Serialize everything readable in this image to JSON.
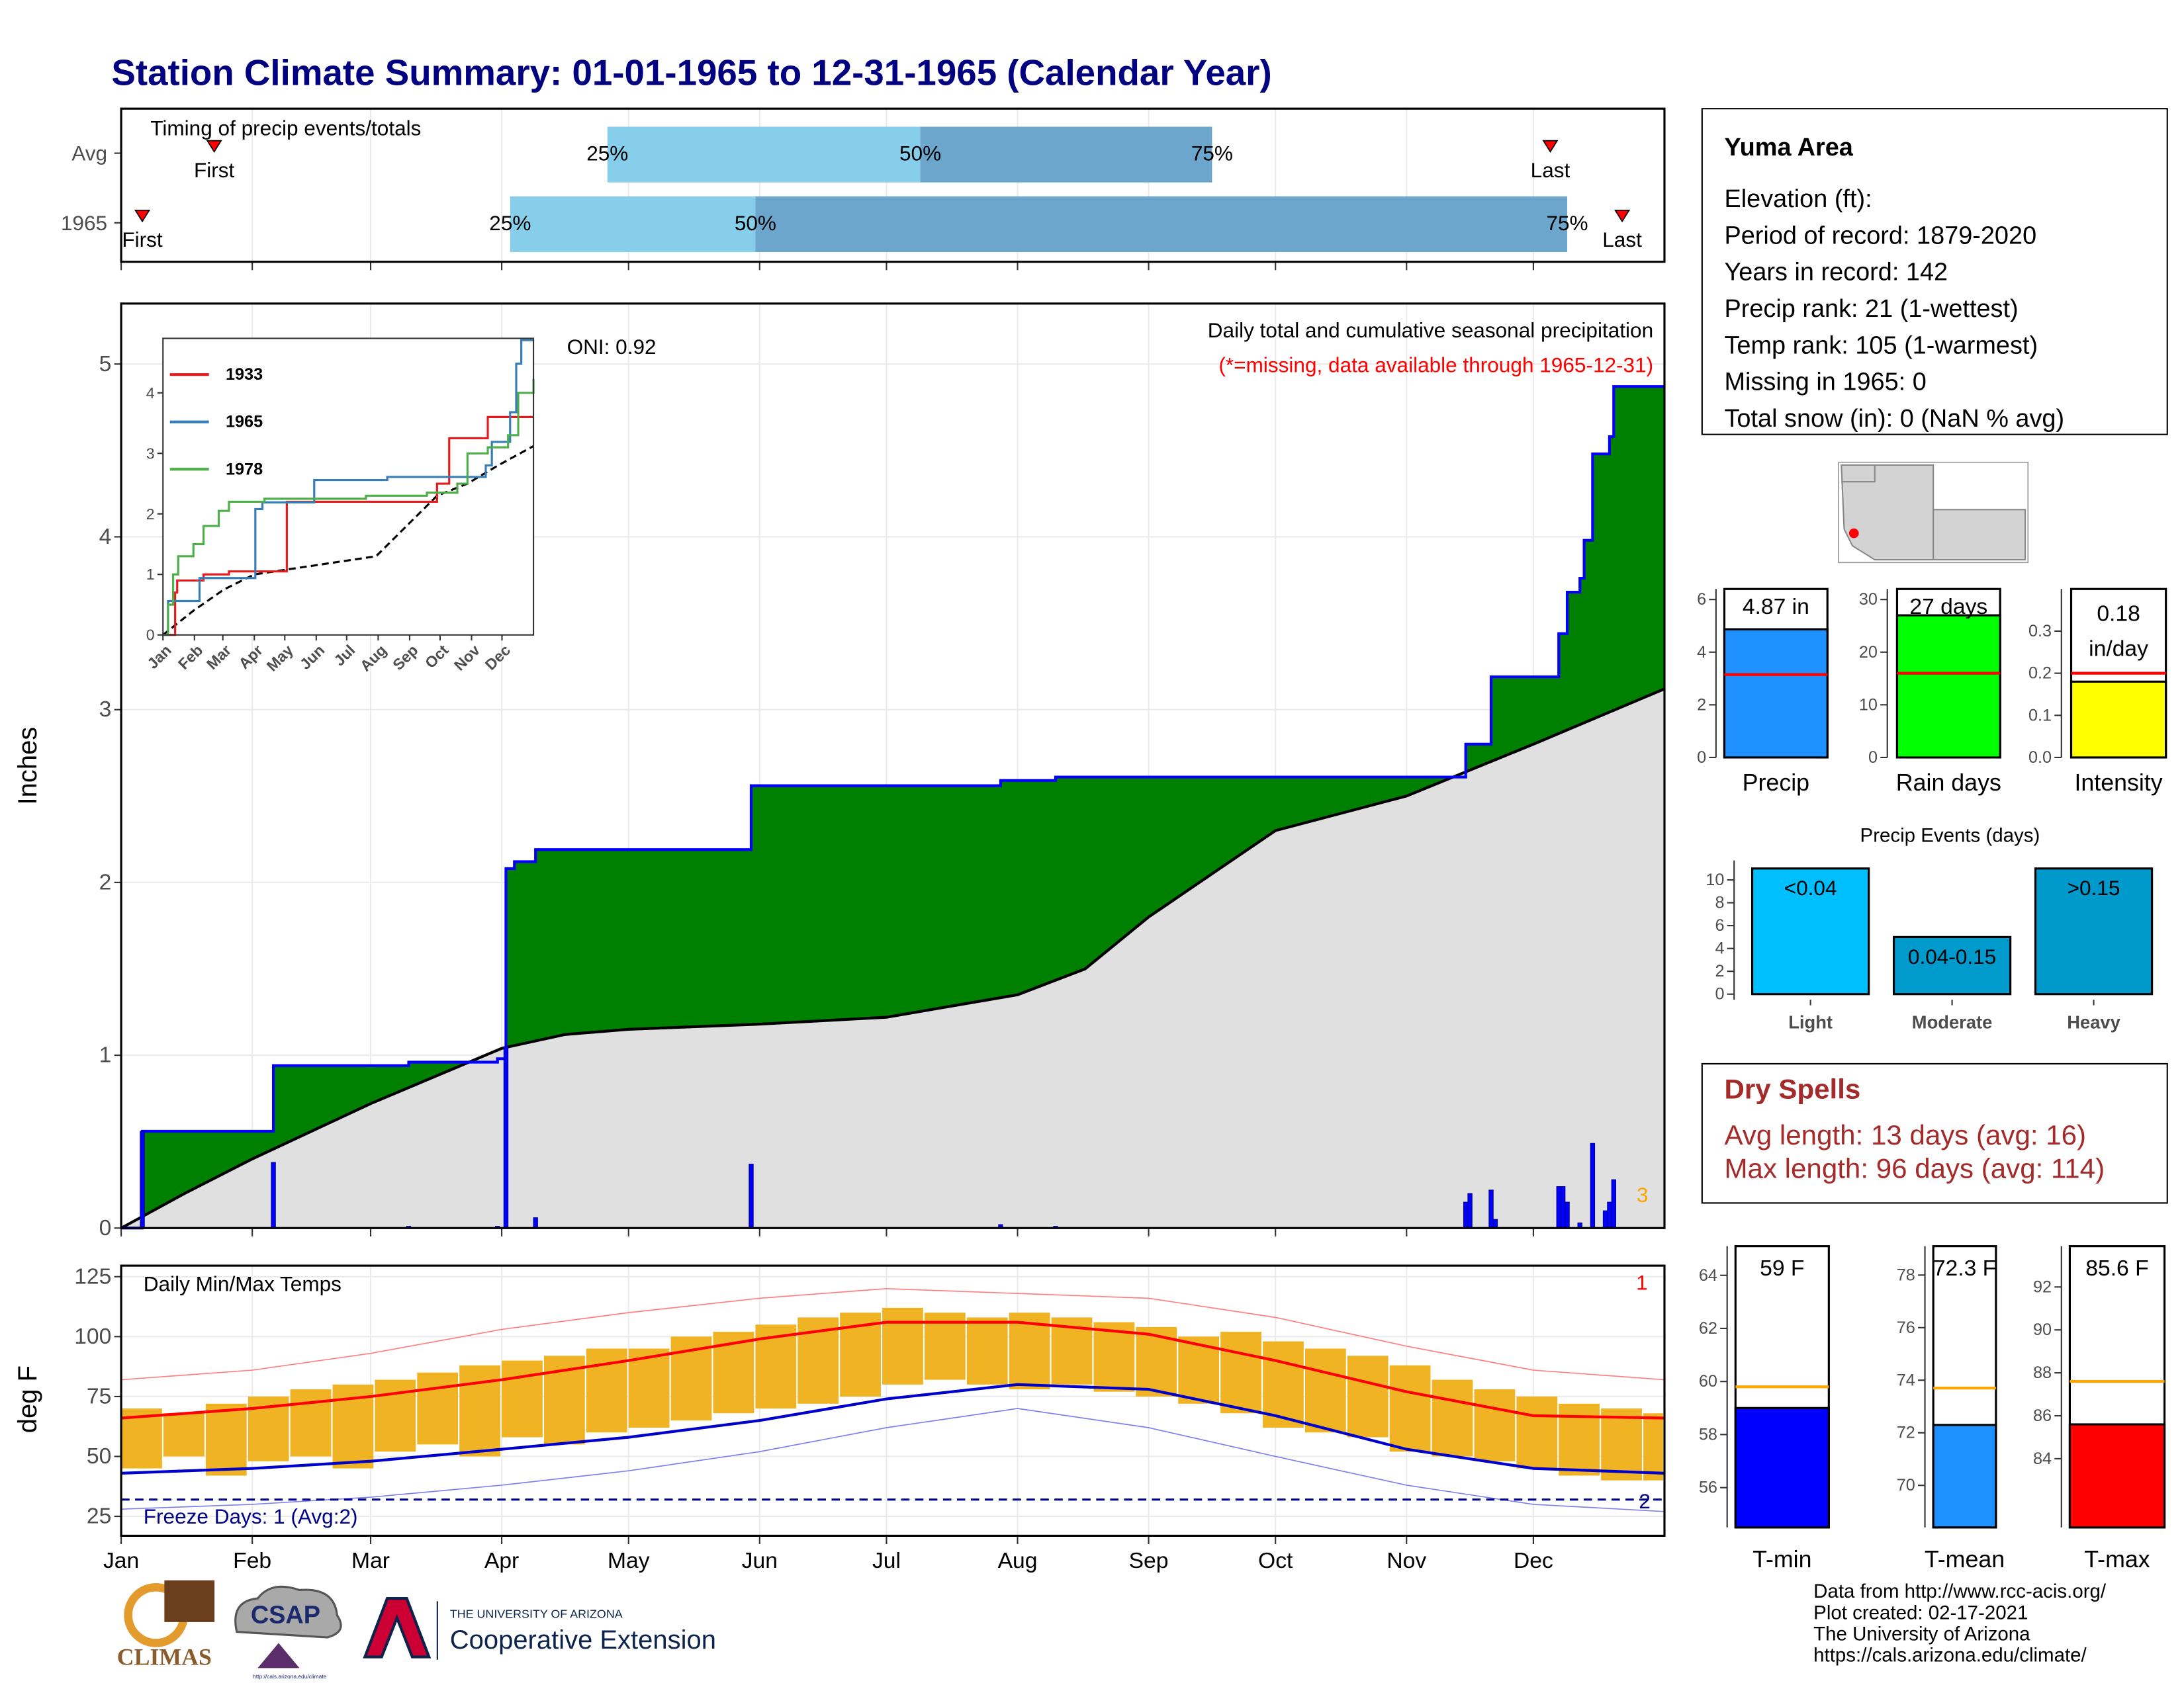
{
  "title": "Station Climate Summary: 01-01-1965 to 12-31-1965 (Calendar Year)",
  "chart_data": [
    {
      "type": "timing",
      "title": "Timing of precip events/totals",
      "categories": [
        "Avg",
        "1965"
      ],
      "xlim": [
        0,
        365
      ],
      "xticks": [
        0,
        31,
        59,
        90,
        120,
        151,
        181,
        212,
        243,
        273,
        304,
        334
      ],
      "colors": {
        "low": "#87ceeb",
        "high": "#6ca6cd",
        "marker": "#ff0000"
      },
      "rows": [
        {
          "events": [
            {
              "label": "First",
              "x": 22
            },
            {
              "label": "Last",
              "x": 338
            }
          ],
          "quartiles": [
            {
              "label": "25%",
              "x": 115
            },
            {
              "label": "50%",
              "x": 189
            },
            {
              "label": "75%",
              "x": 258
            }
          ]
        },
        {
          "events": [
            {
              "label": "First",
              "x": 5
            },
            {
              "label": "Last",
              "x": 355
            }
          ],
          "quartiles": [
            {
              "label": "25%",
              "x": 92
            },
            {
              "label": "50%",
              "x": 150
            },
            {
              "label": "75%",
              "x": 342
            }
          ]
        }
      ]
    },
    {
      "type": "precip",
      "title": "Daily total and cumulative seasonal precipitation",
      "subtitle": "(*=missing, data available through 1965-12-31)",
      "annotation": "ONI: 0.92",
      "note": "3",
      "y_label": "Inches",
      "xlim": [
        0,
        365
      ],
      "xticks": [
        0,
        31,
        59,
        90,
        120,
        151,
        181,
        212,
        243,
        273,
        304,
        334
      ],
      "ylim": [
        0,
        5.35
      ],
      "yticks": [
        0,
        1,
        2,
        3,
        4,
        5
      ],
      "grid": true,
      "cumulative": {
        "color": "#0000ff",
        "fill": "#008000",
        "x": [
          0,
          5,
          36,
          68,
          89,
          91,
          93,
          98,
          149,
          208,
          221,
          318,
          324,
          340,
          342,
          345,
          346,
          348,
          352,
          353,
          365
        ],
        "values": [
          0,
          0.56,
          0.94,
          0.96,
          0.98,
          2.08,
          2.12,
          2.19,
          2.56,
          2.59,
          2.61,
          2.8,
          3.19,
          3.44,
          3.68,
          3.76,
          3.98,
          4.48,
          4.58,
          4.87,
          4.87
        ]
      },
      "average": {
        "color": "#000000",
        "fill": "#e0e0e0",
        "x": [
          0,
          15,
          31,
          59,
          90,
          105,
          120,
          151,
          181,
          212,
          228,
          243,
          273,
          304,
          334,
          365
        ],
        "values": [
          0,
          0.2,
          0.4,
          0.72,
          1.04,
          1.12,
          1.15,
          1.18,
          1.22,
          1.35,
          1.5,
          1.8,
          2.3,
          2.5,
          2.8,
          3.12
        ]
      },
      "daily": {
        "color": "#0000ff",
        "x": [
          5,
          36,
          68,
          89,
          91,
          98,
          149,
          208,
          221,
          318,
          319,
          324,
          325,
          340,
          341,
          342,
          345,
          348,
          351,
          352,
          353
        ],
        "values": [
          0.56,
          0.38,
          0.01,
          0.01,
          1.05,
          0.06,
          0.37,
          0.02,
          0.01,
          0.15,
          0.2,
          0.22,
          0.05,
          0.24,
          0.24,
          0.15,
          0.03,
          0.49,
          0.1,
          0.15,
          0.28
        ]
      }
    },
    {
      "type": "line",
      "categories": [
        "Jan",
        "Feb",
        "Mar",
        "Apr",
        "May",
        "Jun",
        "Jul",
        "Aug",
        "Sep",
        "Oct",
        "Nov",
        "Dec"
      ],
      "xlim": [
        0,
        365
      ],
      "xticks": [
        0,
        31,
        59,
        90,
        120,
        151,
        181,
        212,
        243,
        273,
        304,
        334
      ],
      "ylim": [
        0,
        4.9
      ],
      "yticks": [
        0,
        1,
        2,
        3,
        4
      ],
      "series": [
        {
          "name": "1933",
          "color": "#e41a1c",
          "x": [
            0,
            12,
            14,
            40,
            65,
            120,
            122,
            260,
            270,
            282,
            320,
            365
          ],
          "values": [
            0,
            0.7,
            0.9,
            1.0,
            1.05,
            1.05,
            2.2,
            2.2,
            2.5,
            3.25,
            3.6,
            3.6
          ]
        },
        {
          "name": "1965",
          "color": "#377eb8",
          "x": [
            0,
            5,
            36,
            91,
            98,
            149,
            221,
            318,
            324,
            342,
            348,
            353,
            365
          ],
          "values": [
            0,
            0.56,
            0.94,
            2.08,
            2.19,
            2.56,
            2.61,
            2.8,
            3.19,
            3.68,
            4.48,
            4.87,
            4.87
          ]
        },
        {
          "name": "1978",
          "color": "#4daf4a",
          "x": [
            0,
            5,
            10,
            15,
            30,
            40,
            55,
            65,
            100,
            200,
            260,
            290,
            300,
            320,
            340,
            350,
            365
          ],
          "values": [
            0,
            0.5,
            1.0,
            1.3,
            1.5,
            1.8,
            2.05,
            2.2,
            2.25,
            2.3,
            2.35,
            2.5,
            3.0,
            3.1,
            3.3,
            4.0,
            4.23
          ]
        }
      ],
      "average": {
        "color": "#000000",
        "x": [
          0,
          30,
          60,
          90,
          150,
          210,
          240,
          270,
          300,
          330,
          365
        ],
        "values": [
          0,
          0.4,
          0.75,
          1.0,
          1.15,
          1.3,
          1.8,
          2.3,
          2.5,
          2.8,
          3.12
        ]
      }
    },
    {
      "type": "bar_avg",
      "category": "Precip",
      "value": 4.87,
      "value_label": "4.87 in",
      "average": 3.15,
      "color": "#1e90ff",
      "average_color": "#ff0000",
      "ylim": [
        0,
        6.4
      ],
      "yticks": [
        0,
        2,
        4,
        6
      ]
    },
    {
      "type": "bar_avg",
      "category": "Rain days",
      "value": 27,
      "value_label": "27 days",
      "average": 16,
      "color": "#00ff00",
      "average_color": "#ff0000",
      "ylim": [
        0,
        32
      ],
      "yticks": [
        0,
        10,
        20,
        30
      ]
    },
    {
      "type": "bar_avg",
      "category": "Intensity",
      "value": 0.18,
      "value_label": "0.18",
      "unit": "in/day",
      "average": 0.2,
      "color": "#ffff00",
      "average_color": "#ff0000",
      "ylim": [
        0,
        0.4
      ],
      "yticks": [
        {
          "value": 0,
          "label": "0.0"
        },
        0.1,
        0.2,
        0.3
      ]
    },
    {
      "type": "bar",
      "title": "Precip Events (days)",
      "categories": [
        "Light",
        "Moderate",
        "Heavy"
      ],
      "ranges": [
        "<0.04",
        "0.04-0.15",
        ">0.15"
      ],
      "values": [
        11,
        5,
        11
      ],
      "colors": [
        "#00bfff",
        "#009acd",
        "#0099cc"
      ],
      "ylim": [
        0,
        11.7
      ],
      "yticks": [
        0,
        2,
        4,
        6,
        8,
        10
      ]
    },
    {
      "type": "temp",
      "title": "Daily Min/Max Temps",
      "y_label": "deg F",
      "categories": [
        "Jan",
        "Feb",
        "Mar",
        "Apr",
        "May",
        "Jun",
        "Jul",
        "Aug",
        "Sep",
        "Oct",
        "Nov",
        "Dec"
      ],
      "xlim": [
        0,
        365
      ],
      "xticks": [
        0,
        31,
        59,
        90,
        120,
        151,
        181,
        212,
        243,
        273,
        304,
        334
      ],
      "ylim": [
        16.9,
        129.6
      ],
      "yticks": [
        25,
        50,
        75,
        100,
        125
      ],
      "grid": true,
      "freeze_line": 32,
      "freeze_label": "Freeze Days: 1 (Avg:2)",
      "max_count": "1",
      "min_count": "2",
      "daily": {
        "color": "#f0b323",
        "x": [
          0,
          10,
          20,
          30,
          40,
          50,
          60,
          70,
          80,
          90,
          100,
          110,
          120,
          130,
          140,
          150,
          160,
          170,
          180,
          190,
          200,
          210,
          220,
          230,
          240,
          250,
          260,
          270,
          280,
          290,
          300,
          310,
          320,
          330,
          340,
          350,
          360
        ],
        "low": [
          45,
          50,
          42,
          48,
          50,
          45,
          52,
          55,
          50,
          58,
          55,
          60,
          62,
          65,
          68,
          70,
          72,
          75,
          80,
          82,
          80,
          78,
          80,
          77,
          75,
          72,
          68,
          62,
          60,
          58,
          52,
          50,
          48,
          45,
          42,
          40,
          40
        ],
        "high": [
          70,
          68,
          72,
          75,
          78,
          80,
          82,
          85,
          88,
          90,
          92,
          95,
          95,
          100,
          102,
          105,
          108,
          110,
          112,
          110,
          108,
          110,
          108,
          106,
          104,
          100,
          102,
          98,
          95,
          92,
          88,
          82,
          78,
          75,
          72,
          70,
          68
        ]
      },
      "normal_max": {
        "color": "#ff0000",
        "x": [
          0,
          31,
          59,
          90,
          120,
          151,
          181,
          212,
          243,
          273,
          304,
          334,
          365
        ],
        "values": [
          66,
          70,
          75,
          82,
          90,
          99,
          106,
          106,
          101,
          90,
          77,
          67,
          66
        ]
      },
      "normal_min": {
        "color": "#0000cd",
        "x": [
          0,
          31,
          59,
          90,
          120,
          151,
          181,
          212,
          243,
          273,
          304,
          334,
          365
        ],
        "values": [
          43,
          45,
          48,
          53,
          58,
          65,
          74,
          80,
          78,
          67,
          53,
          45,
          43
        ]
      },
      "record_max": {
        "color": "#ff8080",
        "x": [
          0,
          31,
          59,
          90,
          120,
          151,
          181,
          212,
          243,
          273,
          304,
          334,
          365
        ],
        "values": [
          82,
          86,
          93,
          103,
          110,
          116,
          120,
          118,
          116,
          108,
          96,
          86,
          82
        ]
      },
      "record_min": {
        "color": "#8080ee",
        "x": [
          0,
          31,
          59,
          90,
          120,
          151,
          181,
          212,
          243,
          273,
          304,
          334,
          365
        ],
        "values": [
          28,
          30,
          33,
          38,
          44,
          52,
          62,
          70,
          62,
          50,
          38,
          30,
          27
        ]
      }
    },
    {
      "type": "bar_avg",
      "category": "T-min",
      "value": 59,
      "value_label": "59 F",
      "average": 59.8,
      "color": "#0000ff",
      "average_color": "#ffa500",
      "ylim": [
        54.5,
        65.1
      ],
      "yticks": [
        56,
        58,
        60,
        62,
        64
      ]
    },
    {
      "type": "bar_avg",
      "category": "T-mean",
      "value": 72.3,
      "value_label": "72.3 F",
      "average": 73.7,
      "color": "#1e90ff",
      "average_color": "#ffa500",
      "ylim": [
        68.4,
        79.1
      ],
      "yticks": [
        70,
        72,
        74,
        76,
        78
      ]
    },
    {
      "type": "bar_avg",
      "category": "T-max",
      "value": 85.6,
      "value_label": "85.6 F",
      "average": 87.6,
      "color": "#ff0000",
      "average_color": "#ffa500",
      "ylim": [
        80.8,
        93.9
      ],
      "yticks": [
        84,
        86,
        88,
        90,
        92
      ]
    }
  ],
  "info": {
    "title": "Yuma Area",
    "lines": [
      "Elevation (ft):",
      "Period of record: 1879-2020",
      "Years in record: 142",
      "Precip rank: 21 (1-wettest)",
      "Temp rank: 105 (1-warmest)",
      "Missing in 1965: 0",
      "Total snow (in): 0 (NaN % avg)"
    ]
  },
  "dry_spells": {
    "title": "Dry Spells",
    "lines": [
      "Avg length: 13 days (avg: 16)",
      "Max length: 96 days (avg: 114)"
    ]
  },
  "footer": {
    "lines": [
      "Data from http://www.rcc-acis.org/",
      "Plot created: 02-17-2021",
      "The University of Arizona",
      "https://cals.arizona.edu/climate/"
    ]
  },
  "logos": {
    "climas": "CLIMAS",
    "csap": "CSAP",
    "csap_url": "http://cals.arizona.edu/climate",
    "university": "THE UNIVERSITY OF ARIZONA",
    "extension": "Cooperative Extension"
  }
}
